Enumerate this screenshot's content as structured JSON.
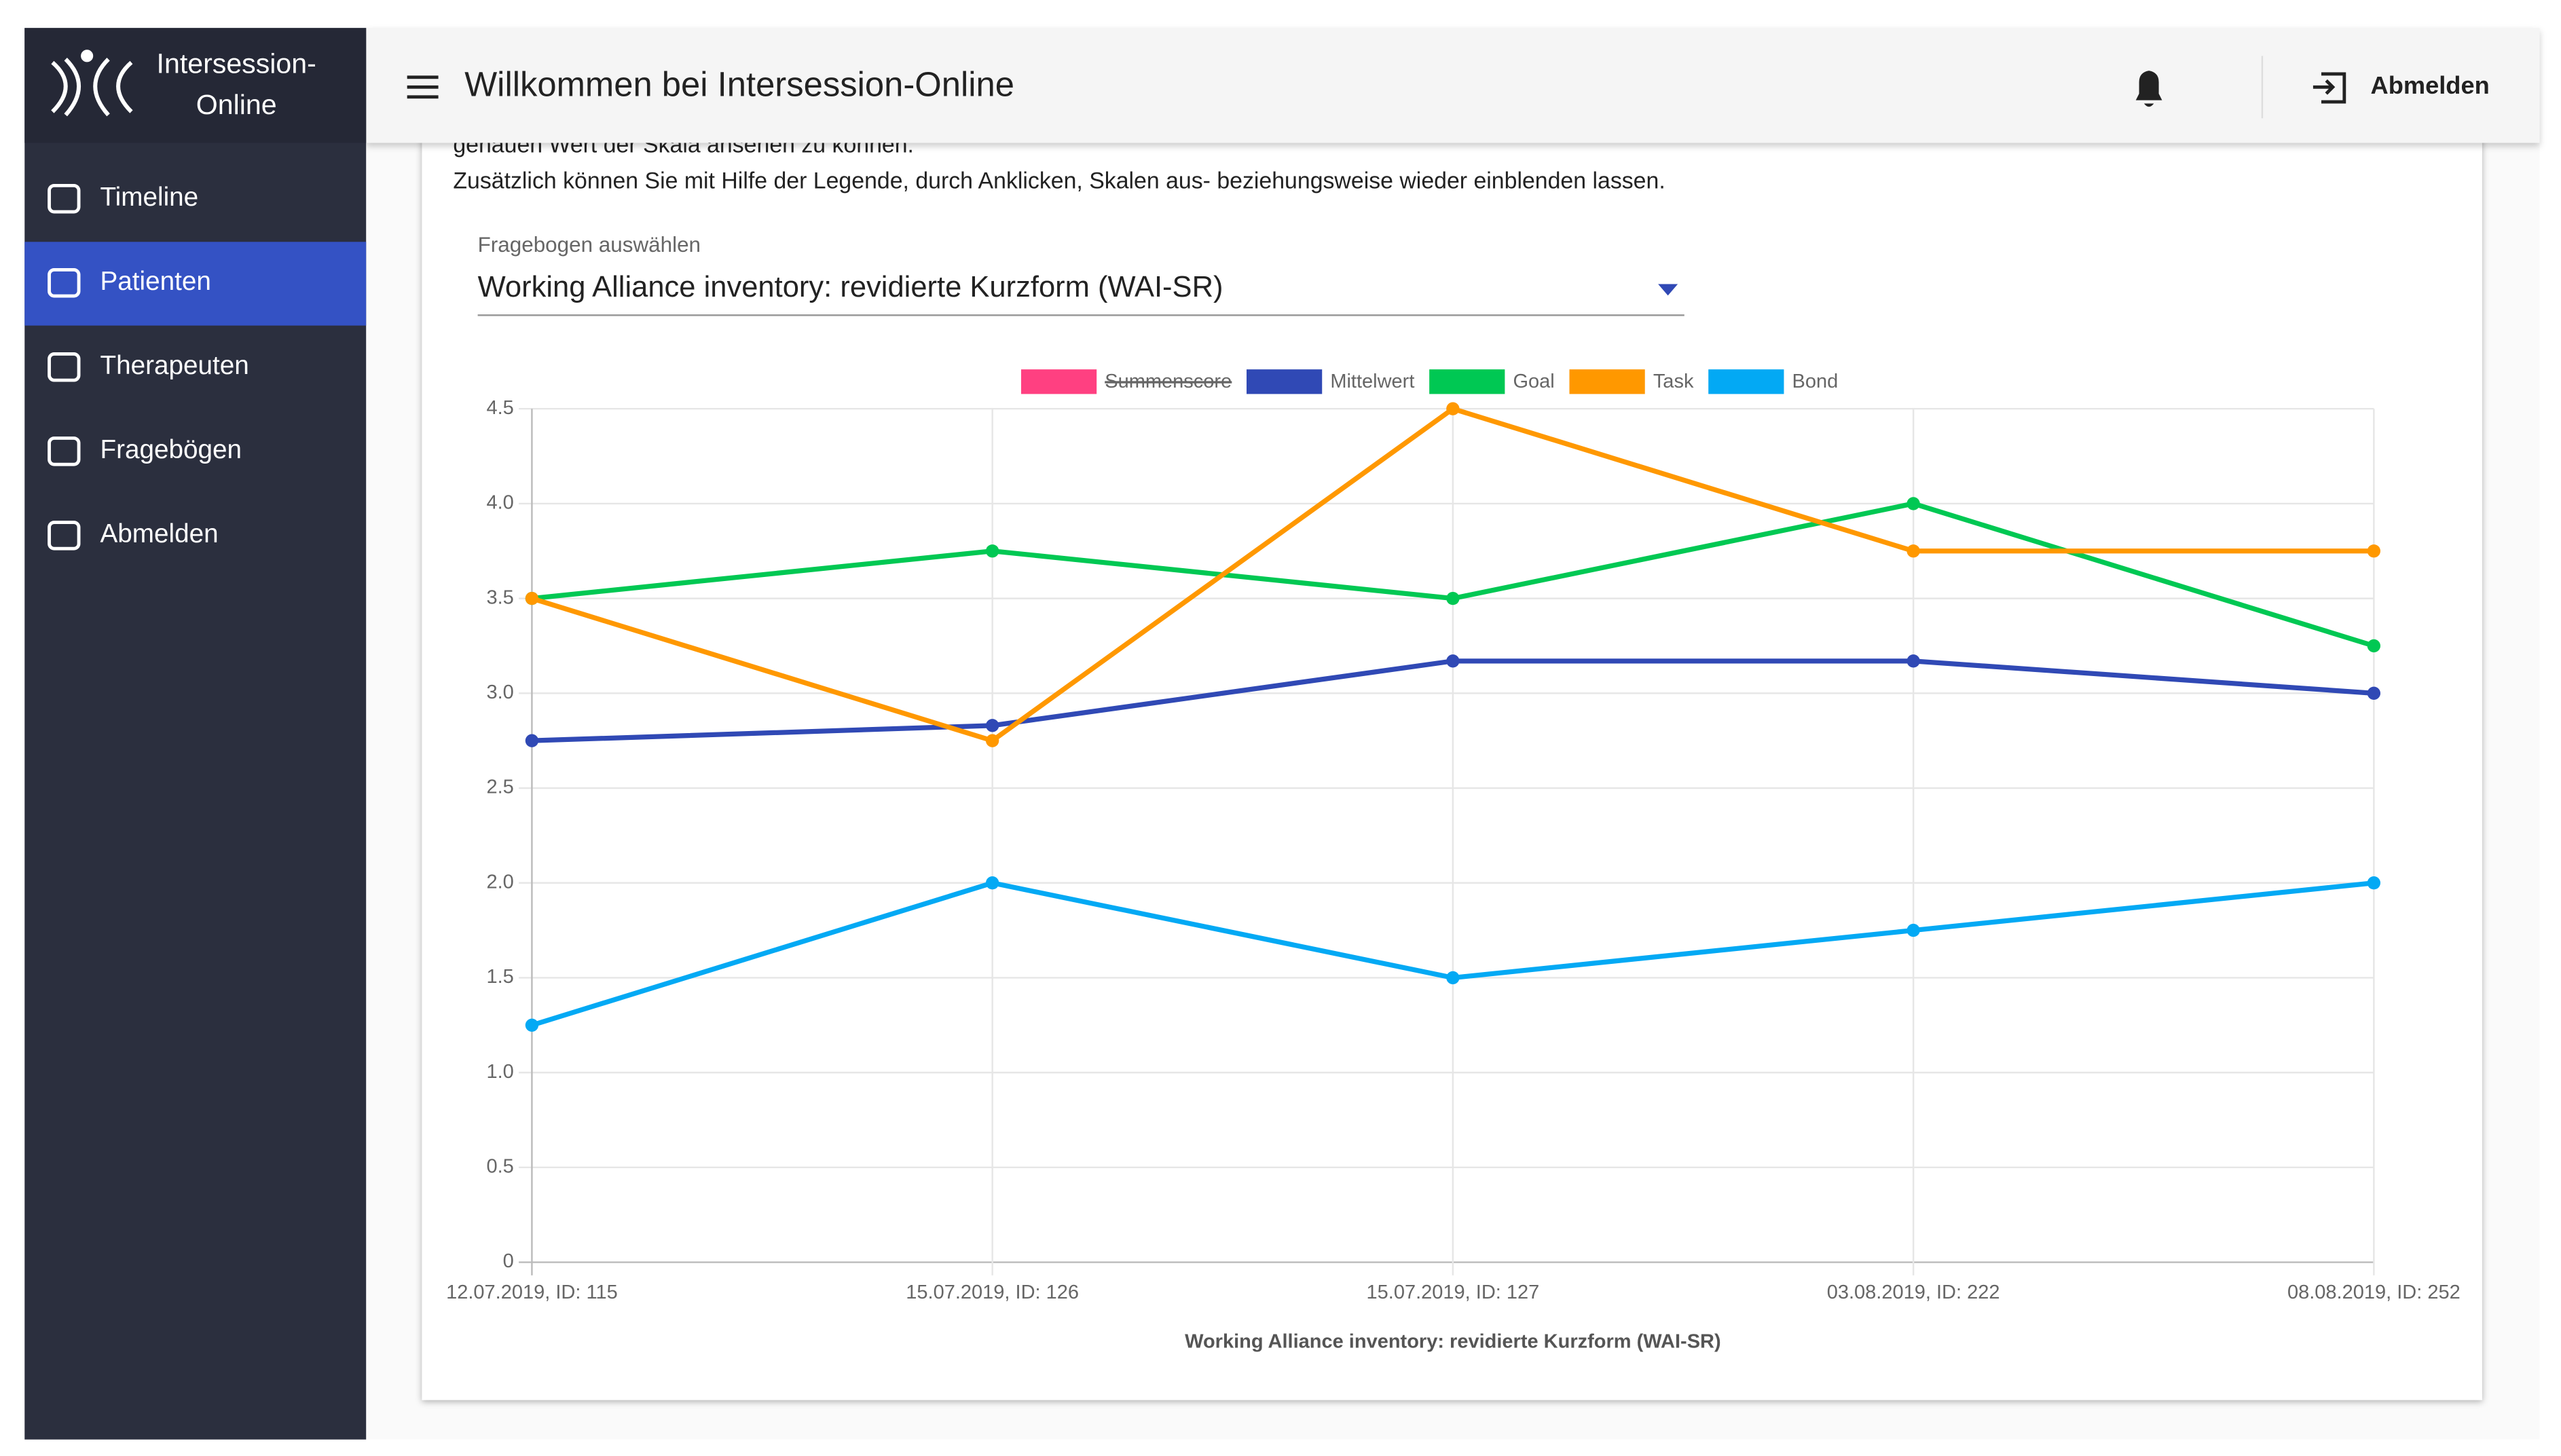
{
  "app": {
    "brand": [
      "Intersession-",
      "Online"
    ],
    "header_title": "Willkommen bei Intersession-Online",
    "logout": "Abmelden",
    "nav": [
      "Timeline",
      "Patienten",
      "Therapeuten",
      "Fragebögen",
      "Abmelden"
    ],
    "active_nav": 1,
    "intro_text": [
      "genauen Wert der Skala ansehen zu können.",
      "Zusätzlich können Sie mit Hilfe der Legende, durch Anklicken, Skalen aus- beziehungsweise wieder einblenden lassen."
    ],
    "select_label": "Fragebogen auswählen",
    "select_value": "Working Alliance inventory: revidierte Kurzform (WAI-SR)"
  },
  "chart_data": {
    "type": "line",
    "xlabel": "Working Alliance inventory: revidierte Kurzform (WAI-SR)",
    "categories": [
      "12.07.2019, ID: 115",
      "15.07.2019, ID: 126",
      "15.07.2019, ID: 127",
      "03.08.2019, ID: 222",
      "08.08.2019, ID: 252"
    ],
    "series": [
      {
        "name": "Summenscore",
        "color": "#ff4081",
        "hidden": true,
        "values": [
          null,
          null,
          null,
          null,
          null
        ]
      },
      {
        "name": "Mittelwert",
        "color": "#3049b5",
        "values": [
          2.75,
          2.83,
          3.17,
          3.17,
          3.0
        ]
      },
      {
        "name": "Goal",
        "color": "#00c853",
        "values": [
          3.5,
          3.75,
          3.5,
          4.0,
          3.25
        ]
      },
      {
        "name": "Task",
        "color": "#ff9800",
        "values": [
          3.5,
          2.75,
          4.5,
          3.75,
          3.75
        ]
      },
      {
        "name": "Bond",
        "color": "#03a9f4",
        "values": [
          1.25,
          2.0,
          1.5,
          1.75,
          2.0
        ]
      }
    ],
    "ylim": [
      0,
      4.5
    ],
    "yticks": [
      0,
      0.5,
      {
        "value": 1,
        "label": "1.0"
      },
      1.5,
      {
        "value": 2,
        "label": "2.0"
      },
      2.5,
      {
        "value": 3,
        "label": "3.0"
      },
      3.5,
      {
        "value": 4,
        "label": "4.0"
      },
      4.5
    ],
    "grid": true,
    "legend": "top"
  }
}
